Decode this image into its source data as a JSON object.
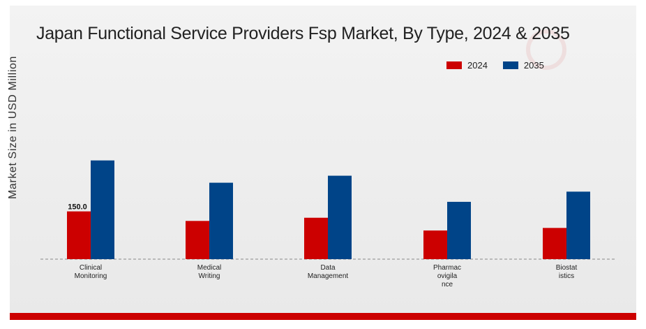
{
  "chart_data": {
    "type": "bar",
    "title": "Japan Functional Service Providers Fsp Market, By Type, 2024 & 2035",
    "ylabel": "Market Size in USD Million",
    "xlabel": "",
    "categories": [
      "Clinical Monitoring",
      "Medical Writing",
      "Data Management",
      "Pharmacovigilance",
      "Biostatistics"
    ],
    "category_label_lines": [
      [
        "Clinical",
        "Monitoring"
      ],
      [
        "Medical",
        "Writing"
      ],
      [
        "Data",
        "Management"
      ],
      [
        "Pharmac",
        "ovigila",
        "nce"
      ],
      [
        "Biostat",
        "istics"
      ]
    ],
    "series": [
      {
        "name": "2024",
        "color": "#cc0000",
        "values": [
          150.0,
          120.0,
          130.0,
          90.0,
          98.0
        ]
      },
      {
        "name": "2035",
        "color": "#004488",
        "values": [
          310.0,
          240.0,
          262.0,
          180.0,
          212.0
        ]
      }
    ],
    "data_labels": [
      {
        "series": 0,
        "index": 0,
        "text": "150.0"
      }
    ],
    "ylim": [
      0,
      340
    ],
    "legend_position": "top-right",
    "grid": false
  }
}
